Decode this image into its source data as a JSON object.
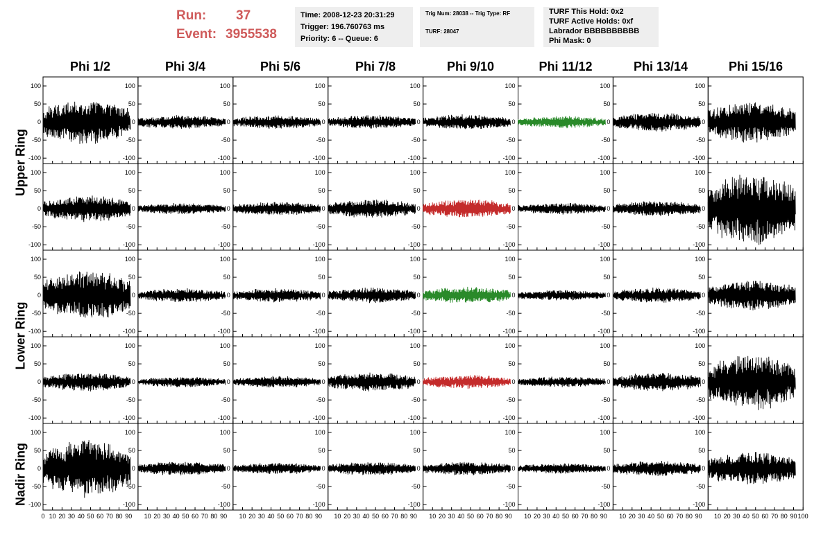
{
  "header": {
    "run_label": "Run:",
    "run_value": "37",
    "event_label": "Event:",
    "event_value": "3955538",
    "colors": {
      "run_text": "#cf5b5b",
      "panel_bg": "#eeeeee"
    },
    "box1": {
      "time": "Time: 2008-12-23 20:31:29",
      "trigger": "Trigger: 196.760763 ms",
      "priority": "Priority: 6 -- Queue: 6"
    },
    "box2": {
      "trig": "Trig Num: 28038 -- Trig Type: RF",
      "turf": "TURF: 28047"
    },
    "box3": {
      "this_hold": "TURF This Hold: 0x2",
      "active_holds": "TURF Active Holds: 0xf",
      "labrador": "Labrador BBBBBBBBBB",
      "phi_mask": "Phi Mask: 0"
    }
  },
  "columns": [
    "Phi 1/2",
    "Phi 3/4",
    "Phi 5/6",
    "Phi 7/8",
    "Phi 9/10",
    "Phi 11/12",
    "Phi 13/14",
    "Phi 15/16"
  ],
  "rings": [
    "Upper Ring",
    "Lower Ring",
    "Nadir Ring"
  ],
  "chart_data": {
    "type": "line",
    "grid": false,
    "xlim": [
      0,
      100
    ],
    "ylim": [
      -115,
      125
    ],
    "y_ticks": [
      -100,
      -50,
      0,
      50,
      100
    ],
    "x_ticks": [
      0,
      10,
      20,
      30,
      40,
      50,
      60,
      70,
      80,
      90,
      100
    ],
    "x_tick_labels": [
      "0",
      "10",
      "20",
      "30",
      "40",
      "50",
      "60",
      "70",
      "80",
      "90",
      "100"
    ],
    "y_tick_labels": [
      "-100",
      "-50",
      "0",
      "50",
      "100"
    ],
    "rows": [
      {
        "amplitudes": [
          60,
          18,
          18,
          18,
          20,
          16,
          25,
          55
        ],
        "colors": [
          "black",
          "black",
          "black",
          "black",
          "black",
          "green",
          "black",
          "black"
        ]
      },
      {
        "amplitudes": [
          35,
          15,
          18,
          25,
          25,
          15,
          20,
          95
        ],
        "colors": [
          "black",
          "black",
          "black",
          "black",
          "red",
          "black",
          "black",
          "black"
        ]
      },
      {
        "amplitudes": [
          65,
          18,
          18,
          20,
          22,
          14,
          20,
          40
        ],
        "colors": [
          "black",
          "black",
          "black",
          "black",
          "green",
          "black",
          "black",
          "black"
        ]
      },
      {
        "amplitudes": [
          25,
          14,
          15,
          25,
          18,
          14,
          25,
          75
        ],
        "colors": [
          "black",
          "black",
          "black",
          "black",
          "red",
          "black",
          "black",
          "black"
        ]
      },
      {
        "amplitudes": [
          75,
          18,
          15,
          18,
          18,
          14,
          20,
          45
        ],
        "colors": [
          "black",
          "black",
          "black",
          "black",
          "black",
          "black",
          "black",
          "black"
        ]
      }
    ],
    "trace_colors": {
      "black": "#000000",
      "green": "#2a8a2a",
      "red": "#c42b2b"
    }
  }
}
